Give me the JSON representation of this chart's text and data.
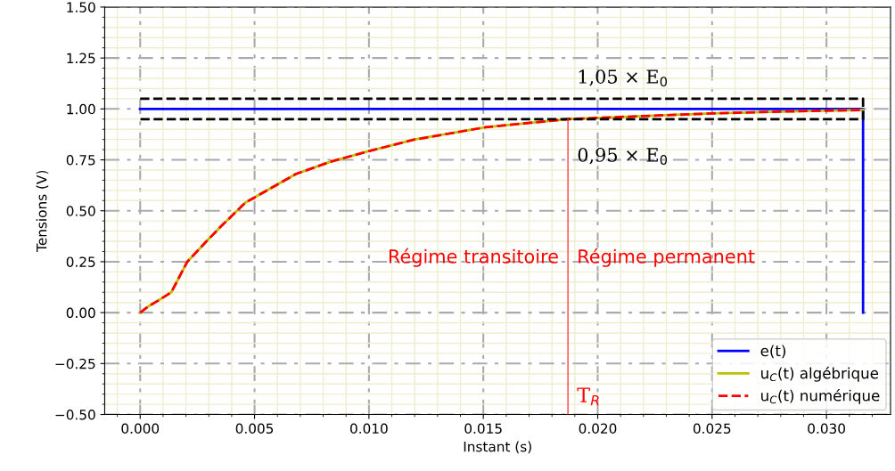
{
  "chart_data": {
    "type": "line",
    "xlabel": "Instant (s)",
    "ylabel": "Tensions (V)",
    "xlim": [
      -0.00155,
      0.0328
    ],
    "ylim": [
      -0.5,
      1.5
    ],
    "xticks": [
      {
        "value": 0,
        "label": "0.000"
      },
      {
        "value": 0.005,
        "label": "0.005"
      },
      {
        "value": 0.01,
        "label": "0.010"
      },
      {
        "value": 0.015,
        "label": "0.015"
      },
      {
        "value": 0.02,
        "label": "0.020"
      },
      {
        "value": 0.025,
        "label": "0.025"
      },
      {
        "value": 0.03,
        "label": "0.030"
      }
    ],
    "yticks": [
      {
        "value": -0.5,
        "label": "−0.50"
      },
      {
        "value": -0.25,
        "label": "−0.25"
      },
      {
        "value": 0,
        "label": "0.00"
      },
      {
        "value": 0.25,
        "label": "0.25"
      },
      {
        "value": 0.5,
        "label": "0.50"
      },
      {
        "value": 0.75,
        "label": "0.75"
      },
      {
        "value": 1,
        "label": "1.00"
      },
      {
        "value": 1.25,
        "label": "1.25"
      },
      {
        "value": 1.5,
        "label": "1.50"
      }
    ],
    "grid": true,
    "legend": "bottom right",
    "series": [
      {
        "name": "e(t)",
        "color": "#0000ff",
        "line_style": "solid",
        "x": [
          0,
          0.0316,
          0.0316
        ],
        "values": [
          1,
          1,
          0
        ]
      },
      {
        "name": "u$_{C}$(t) algébrique",
        "color": "#bfbf00",
        "line_style": "solid",
        "x": [
          0,
          0.00035,
          0.0008,
          0.00136,
          0.00206,
          0.0029,
          0.0035,
          0.0046,
          0.0057,
          0.0068,
          0.0083,
          0.0099,
          0.012,
          0.0151,
          0.0187,
          0.022,
          0.025,
          0.028,
          0.0316
        ],
        "values": [
          0,
          0.03,
          0.06,
          0.1,
          0.25,
          0.35,
          0.42,
          0.54,
          0.61,
          0.68,
          0.74,
          0.79,
          0.85,
          0.91,
          0.95,
          0.965,
          0.978,
          0.987,
          0.995
        ]
      },
      {
        "name": "u$_{C}$(t) numérique",
        "color": "#ff0000",
        "line_style": "dashed",
        "x": [
          0,
          0.00035,
          0.0008,
          0.00136,
          0.00206,
          0.0029,
          0.0035,
          0.0046,
          0.0057,
          0.0068,
          0.0083,
          0.0099,
          0.012,
          0.0151,
          0.0187,
          0.022,
          0.025,
          0.028,
          0.0316
        ],
        "values": [
          0,
          0.03,
          0.06,
          0.1,
          0.25,
          0.35,
          0.42,
          0.54,
          0.61,
          0.68,
          0.74,
          0.79,
          0.85,
          0.91,
          0.95,
          0.965,
          0.978,
          0.987,
          0.995
        ]
      },
      {
        "color": "#000000",
        "line_style": "dashed",
        "x": [
          0,
          0.0316,
          0.0316,
          0
        ],
        "values": [
          1.05,
          1.05,
          0.95,
          0.95
        ]
      },
      {
        "color": "#ff4040",
        "line_style": "solid",
        "x": [
          0.0187,
          0.0187
        ],
        "values": [
          -0.5,
          0.95
        ]
      }
    ],
    "annotations": [
      "1,05 × E$_{0}$",
      "0,95 × E$_{0}$",
      "Régime transitoire",
      "Régime permanent",
      "T$_{R}$"
    ]
  }
}
